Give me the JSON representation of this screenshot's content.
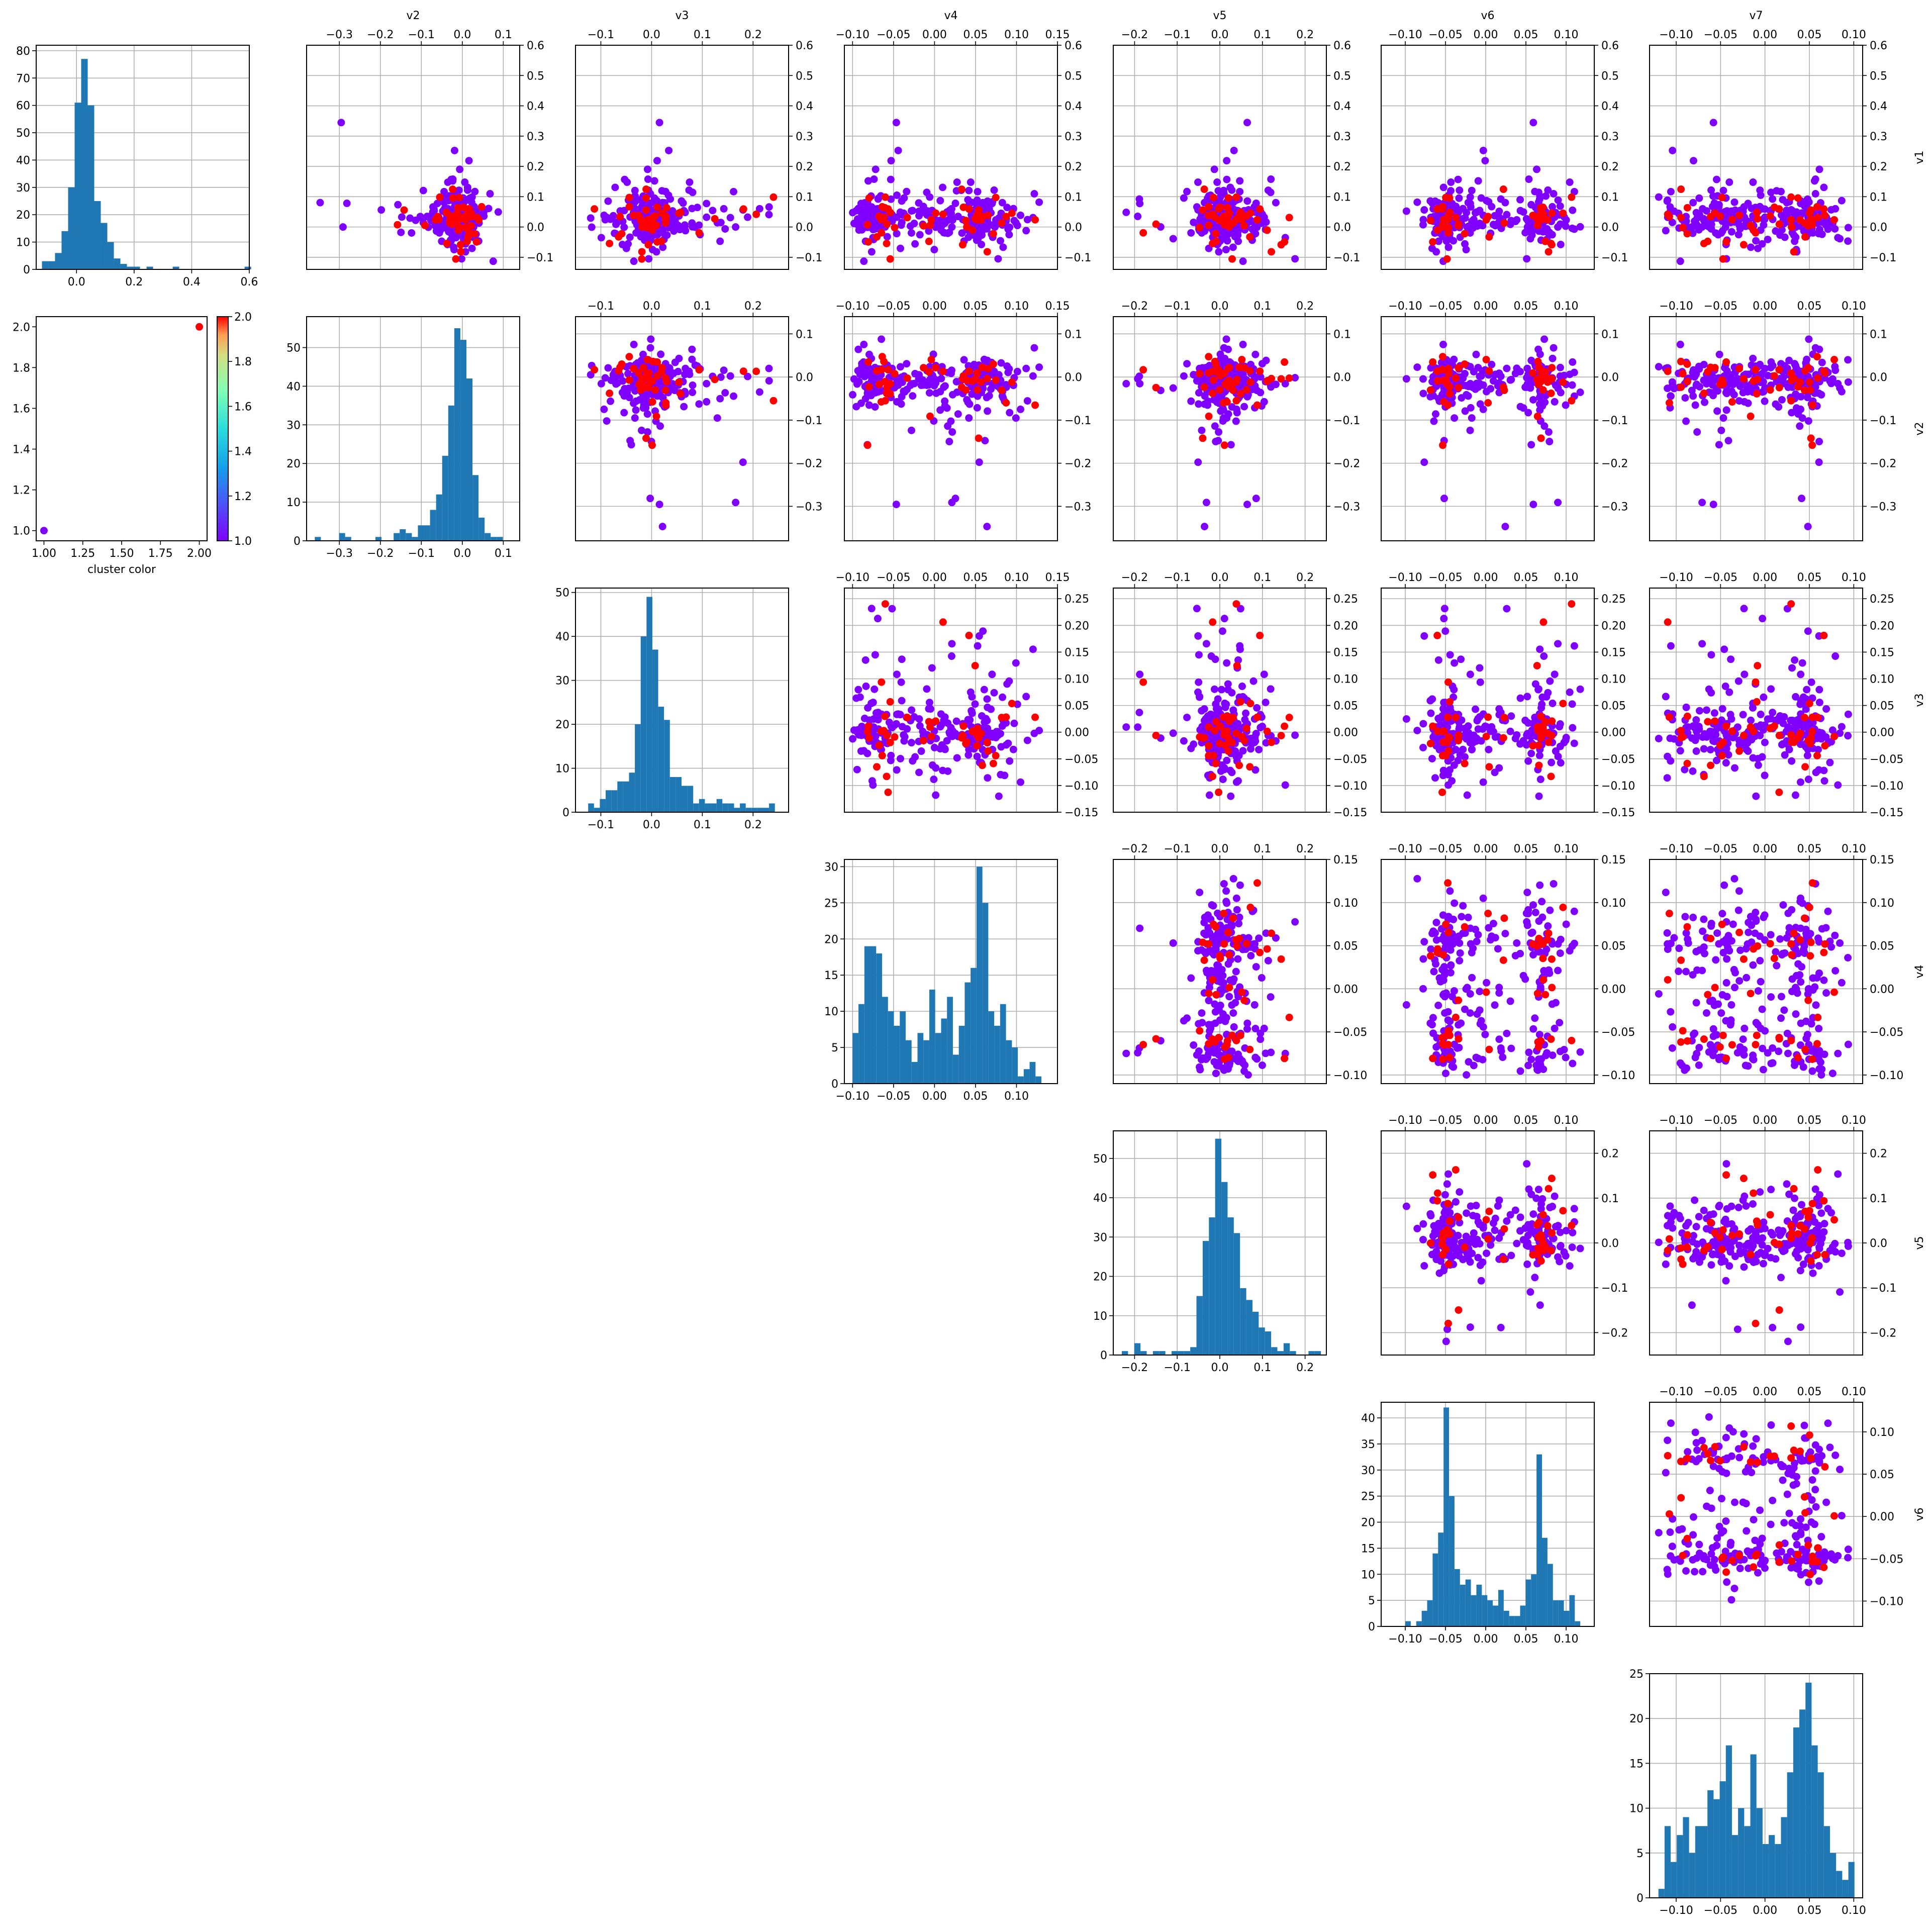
{
  "colors": {
    "hist_bar": "#1f77b4",
    "cluster_1": "#7f00ff",
    "cluster_2": "#ff0000",
    "grid": "#b0b0b0",
    "colormap": "rainbow"
  },
  "cluster_legend": {
    "xlabel": "cluster color",
    "x_ticks": [
      "1.00",
      "1.25",
      "1.50",
      "1.75",
      "2.00"
    ],
    "y_ticks": [
      "1.0",
      "1.2",
      "1.4",
      "1.6",
      "1.8",
      "2.0"
    ],
    "colorbar_ticks": [
      "1.0",
      "1.2",
      "1.4",
      "1.6",
      "1.8",
      "2.0"
    ]
  },
  "chart_data": {
    "type": "scatter-matrix",
    "variables": [
      "v1",
      "v2",
      "v3",
      "v4",
      "v5",
      "v6",
      "v7"
    ],
    "grid": true,
    "point_color_encoding": "cluster (1 = purple, 2 = red)",
    "cluster_legend_points": [
      {
        "x": 1.0,
        "y": 1.0,
        "cluster": 1
      },
      {
        "x": 2.0,
        "y": 2.0,
        "cluster": 2
      }
    ],
    "ranges": {
      "v1": [
        -0.14,
        0.6
      ],
      "v2": [
        -0.38,
        0.14
      ],
      "v3": [
        -0.15,
        0.27
      ],
      "v4": [
        -0.11,
        0.15
      ],
      "v5": [
        -0.25,
        0.25
      ],
      "v6": [
        -0.13,
        0.135
      ],
      "v7": [
        -0.13,
        0.11
      ]
    },
    "ticks": {
      "v1": [
        "-0.1",
        "0.0",
        "0.1",
        "0.2",
        "0.3",
        "0.4",
        "0.5",
        "0.6"
      ],
      "v2": [
        "-0.3",
        "-0.2",
        "-0.1",
        "0.0",
        "0.1"
      ],
      "v3": [
        "-0.15",
        "-0.10",
        "-0.05",
        "0.00",
        "0.05",
        "0.10",
        "0.15",
        "0.20",
        "0.25"
      ],
      "v4": [
        "-0.10",
        "-0.05",
        "0.00",
        "0.05",
        "0.10",
        "0.15"
      ],
      "v5": [
        "-0.2",
        "-0.1",
        "0.0",
        "0.1",
        "0.2"
      ],
      "v6": [
        "-0.10",
        "-0.05",
        "0.00",
        "0.05",
        "0.10"
      ],
      "v7": [
        "-0.10",
        "-0.05",
        "0.00",
        "0.05",
        "0.10"
      ]
    },
    "hist_x_ticks": {
      "v1": [
        "0.0",
        "0.2",
        "0.4",
        "0.6"
      ],
      "v2": [
        "-0.3",
        "-0.2",
        "-0.1",
        "0.0",
        "0.1"
      ],
      "v3": [
        "-0.1",
        "0.0",
        "0.1",
        "0.2"
      ],
      "v4": [
        "-0.10",
        "-0.05",
        "0.00",
        "0.05",
        "0.10"
      ],
      "v5": [
        "-0.2",
        "-0.1",
        "0.0",
        "0.1",
        "0.2"
      ],
      "v6": [
        "-0.10",
        "-0.05",
        "0.00",
        "0.05",
        "0.10"
      ],
      "v7": [
        "-0.10",
        "-0.05",
        "0.00",
        "0.05",
        "0.10"
      ]
    },
    "scatter_x_ticks": {
      "v2": [
        "-0.3",
        "-0.2",
        "-0.1",
        "0.0",
        "0.1"
      ],
      "v3": [
        "-0.1",
        "0.0",
        "0.1",
        "0.2"
      ],
      "v4": [
        "-0.10",
        "-0.05",
        "0.00",
        "0.05",
        "0.10",
        "0.15"
      ],
      "v5": [
        "-0.2",
        "-0.1",
        "0.0",
        "0.1",
        "0.2"
      ],
      "v6": [
        "-0.10",
        "-0.05",
        "0.00",
        "0.05",
        "0.10"
      ],
      "v7": [
        "-0.10",
        "-0.05",
        "0.00",
        "0.05",
        "0.10"
      ]
    },
    "scatter_y_ticks": {
      "v1": [
        "-0.1",
        "0.0",
        "0.1",
        "0.2",
        "0.3",
        "0.4",
        "0.5",
        "0.6"
      ],
      "v2": [
        "-0.3",
        "-0.2",
        "-0.1",
        "0.0",
        "0.1"
      ],
      "v3": [
        "-0.15",
        "-0.10",
        "-0.05",
        "0.00",
        "0.05",
        "0.10",
        "0.15",
        "0.20",
        "0.25"
      ],
      "v4": [
        "-0.10",
        "-0.05",
        "0.00",
        "0.05",
        "0.10",
        "0.15"
      ],
      "v5": [
        "-0.2",
        "-0.1",
        "0.0",
        "0.1",
        "0.2"
      ],
      "v6": [
        "-0.10",
        "-0.05",
        "0.00",
        "0.05",
        "0.10"
      ]
    },
    "histograms": {
      "v1": {
        "ylim": [
          0,
          82
        ],
        "y_ticks": [
          0,
          10,
          20,
          30,
          40,
          50,
          60,
          70,
          80
        ],
        "bin_start": -0.12,
        "bin_width": 0.0227,
        "counts": [
          3,
          3,
          6,
          14,
          30,
          61,
          77,
          60,
          25,
          17,
          10,
          4,
          2,
          1,
          1,
          0,
          1,
          0,
          0,
          0,
          1,
          0,
          0,
          0,
          0,
          0,
          0,
          0,
          0,
          0,
          0,
          1
        ]
      },
      "v2": {
        "ylim": [
          0,
          58
        ],
        "y_ticks": [
          0,
          10,
          20,
          30,
          40,
          50
        ],
        "bin_start": -0.36,
        "bin_width": 0.0148,
        "counts": [
          1,
          0,
          0,
          0,
          2,
          1,
          0,
          0,
          0,
          0,
          1,
          0,
          0,
          2,
          3,
          2,
          1,
          4,
          4,
          8,
          12,
          22,
          35,
          55,
          52,
          42,
          17,
          6,
          2,
          1,
          1,
          0
        ]
      },
      "v3": {
        "ylim": [
          0,
          51
        ],
        "y_ticks": [
          0,
          10,
          20,
          30,
          40,
          50
        ],
        "bin_start": -0.125,
        "bin_width": 0.0115,
        "counts": [
          2,
          1,
          3,
          5,
          5,
          7,
          7,
          9,
          20,
          40,
          49,
          37,
          24,
          21,
          8,
          8,
          6,
          6,
          2,
          3,
          2,
          2,
          3,
          2,
          2,
          1,
          2,
          1,
          1,
          1,
          1,
          2
        ]
      },
      "v4": {
        "ylim": [
          0,
          31
        ],
        "y_ticks": [
          0,
          5,
          10,
          15,
          20,
          25,
          30
        ],
        "bin_start": -0.1,
        "bin_width": 0.0072,
        "counts": [
          7,
          11,
          19,
          19,
          18,
          12,
          10,
          8,
          10,
          6,
          3,
          7,
          6,
          13,
          7,
          9,
          12,
          4,
          8,
          14,
          16,
          30,
          25,
          10,
          8,
          11,
          6,
          5,
          1,
          2,
          3,
          1
        ]
      },
      "v5": {
        "ylim": [
          0,
          57
        ],
        "y_ticks": [
          0,
          10,
          20,
          30,
          40,
          50
        ],
        "bin_start": -0.23,
        "bin_width": 0.0146,
        "counts": [
          1,
          0,
          3,
          1,
          0,
          1,
          1,
          0,
          1,
          1,
          1,
          2,
          15,
          29,
          35,
          55,
          44,
          35,
          31,
          17,
          14,
          11,
          7,
          6,
          2,
          1,
          3,
          1,
          0,
          0,
          1,
          1
        ]
      },
      "v6": {
        "ylim": [
          0,
          43
        ],
        "y_ticks": [
          0,
          5,
          10,
          15,
          20,
          25,
          30,
          35,
          40
        ],
        "bin_start": -0.1,
        "bin_width": 0.0068,
        "counts": [
          1,
          0,
          1,
          3,
          5,
          14,
          18,
          42,
          25,
          11,
          8,
          9,
          6,
          8,
          6,
          5,
          4,
          7,
          3,
          2,
          2,
          4,
          9,
          10,
          33,
          17,
          12,
          5,
          5,
          3,
          6,
          1
        ]
      },
      "v7": {
        "ylim": [
          0,
          25
        ],
        "y_ticks": [
          0,
          5,
          10,
          15,
          20,
          25
        ],
        "bin_start": -0.12,
        "bin_width": 0.0069,
        "counts": [
          1,
          8,
          4,
          7,
          9,
          5,
          8,
          8,
          12,
          11,
          13,
          17,
          7,
          10,
          8,
          16,
          10,
          6,
          7,
          6,
          9,
          14,
          19,
          21,
          24,
          17,
          14,
          8,
          5,
          3,
          2,
          4
        ]
      }
    }
  }
}
